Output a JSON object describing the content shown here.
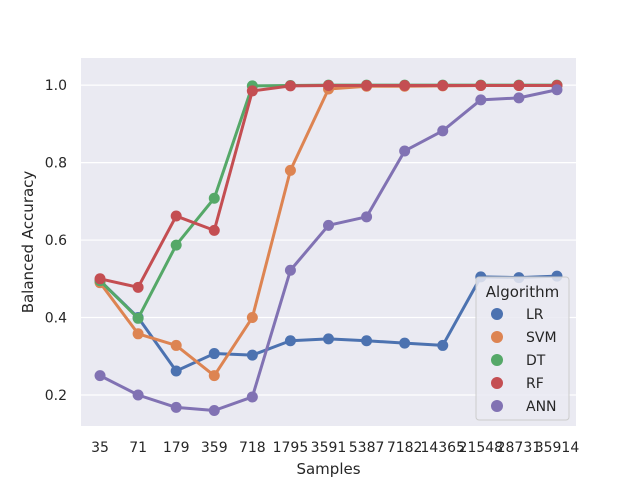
{
  "chart_data": {
    "type": "line",
    "title": "",
    "xlabel": "Samples",
    "ylabel": "Balanced Accuracy",
    "categories": [
      "35",
      "71",
      "179",
      "359",
      "718",
      "1795",
      "3591",
      "5387",
      "7182",
      "14365",
      "21548",
      "28731",
      "35914"
    ],
    "ylim": [
      0.12,
      1.07
    ],
    "yticks": [
      0.2,
      0.4,
      0.6,
      0.8,
      1.0
    ],
    "ytick_labels": [
      "0.2",
      "0.4",
      "0.6",
      "0.8",
      "1.0"
    ],
    "grid": true,
    "background": "#eaeaf2",
    "legend": {
      "title": "Algorithm",
      "position": "lower-right"
    },
    "series": [
      {
        "name": "LR",
        "color": "#4c72b0",
        "values": [
          0.495,
          0.4,
          0.262,
          0.307,
          0.303,
          0.34,
          0.345,
          0.34,
          0.334,
          0.328,
          0.505,
          0.503,
          0.507
        ]
      },
      {
        "name": "SVM",
        "color": "#dd8452",
        "values": [
          0.49,
          0.358,
          0.328,
          0.25,
          0.4,
          0.78,
          0.99,
          0.997,
          0.997,
          0.998,
          0.999,
          0.999,
          0.999
        ]
      },
      {
        "name": "DT",
        "color": "#55a868",
        "values": [
          0.495,
          0.398,
          0.587,
          0.708,
          0.998,
          0.999,
          1.0,
          1.0,
          1.0,
          1.0,
          1.0,
          1.0,
          1.0
        ]
      },
      {
        "name": "RF",
        "color": "#c44e52",
        "values": [
          0.5,
          0.478,
          0.662,
          0.625,
          0.985,
          0.998,
          0.999,
          0.999,
          0.999,
          0.999,
          0.999,
          0.999,
          0.999
        ]
      },
      {
        "name": "ANN",
        "color": "#8172b3",
        "values": [
          0.25,
          0.2,
          0.168,
          0.16,
          0.195,
          0.522,
          0.638,
          0.66,
          0.83,
          0.882,
          0.962,
          0.967,
          0.988
        ]
      }
    ]
  }
}
